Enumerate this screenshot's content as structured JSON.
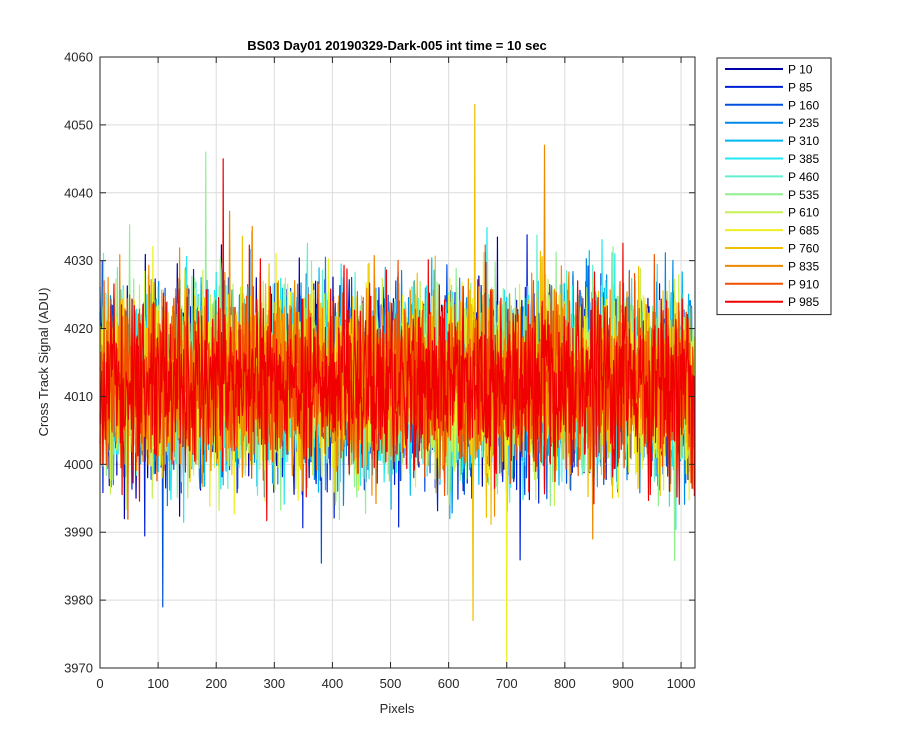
{
  "chart_data": {
    "type": "line",
    "title": "BS03 Day01 20190329-Dark-005 int time = 10 sec",
    "xlabel": "Pixels",
    "ylabel": "Cross Track Signal (ADU)",
    "xlim": [
      0,
      1024
    ],
    "ylim": [
      3970,
      4060
    ],
    "xticks": [
      0,
      100,
      200,
      300,
      400,
      500,
      600,
      700,
      800,
      900,
      1000
    ],
    "yticks": [
      3970,
      3980,
      3990,
      4000,
      4010,
      4020,
      4030,
      4040,
      4050,
      4060
    ],
    "grid": true,
    "legend_position": "outside-right-top",
    "x_points": 1024,
    "noise_center": 4012,
    "noise_sigma": 6.5,
    "series": [
      {
        "name": "P 10",
        "color": "#0000a8"
      },
      {
        "name": "P 85",
        "color": "#0020d8"
      },
      {
        "name": "P 160",
        "color": "#0050e0"
      },
      {
        "name": "P 235",
        "color": "#0088e8"
      },
      {
        "name": "P 310",
        "color": "#00b8f0"
      },
      {
        "name": "P 385",
        "color": "#20e8f0"
      },
      {
        "name": "P 460",
        "color": "#60f0d0"
      },
      {
        "name": "P 535",
        "color": "#90f090"
      },
      {
        "name": "P 610",
        "color": "#c8f050"
      },
      {
        "name": "P 685",
        "color": "#f0f020"
      },
      {
        "name": "P 760",
        "color": "#f0c000"
      },
      {
        "name": "P 835",
        "color": "#f08800"
      },
      {
        "name": "P 910",
        "color": "#f05000"
      },
      {
        "name": "P 985",
        "color": "#f00000"
      }
    ],
    "annotated_extremes": [
      {
        "series": "P 685",
        "x": 700,
        "y": 3971
      },
      {
        "series": "P 760",
        "x": 645,
        "y": 4053
      },
      {
        "series": "P 760",
        "x": 642,
        "y": 3977
      },
      {
        "series": "P 160",
        "x": 108,
        "y": 3979
      },
      {
        "series": "P 985",
        "x": 212,
        "y": 4045
      },
      {
        "series": "P 535",
        "x": 182,
        "y": 4046
      },
      {
        "series": "P 835",
        "x": 765,
        "y": 4047
      }
    ]
  }
}
